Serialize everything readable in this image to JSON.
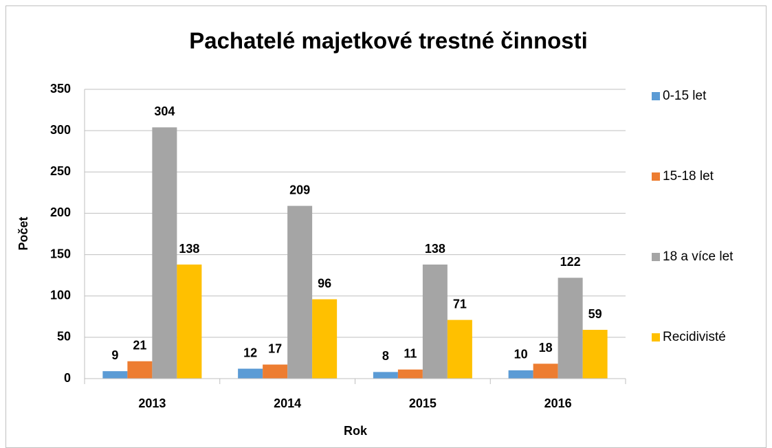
{
  "chart_data": {
    "type": "bar",
    "title": "Pachatelé majetkové trestné činnosti",
    "x_label": "Rok",
    "y_label": "Počet",
    "categories": [
      "2013",
      "2014",
      "2015",
      "2016"
    ],
    "series": [
      {
        "name": "0-15 let",
        "color": "#5b9bd5",
        "values": [
          9,
          12,
          8,
          10
        ]
      },
      {
        "name": "15-18 let",
        "color": "#ed7d31",
        "values": [
          21,
          17,
          11,
          18
        ]
      },
      {
        "name": "18 a více let",
        "color": "#a5a5a5",
        "values": [
          304,
          209,
          138,
          122
        ]
      },
      {
        "name": "Recidivisté",
        "color": "#ffc000",
        "values": [
          138,
          96,
          71,
          59
        ]
      }
    ],
    "ylim": [
      0,
      350
    ],
    "yticks": [
      0,
      50,
      100,
      150,
      200,
      250,
      300,
      350
    ],
    "grid": true,
    "legend": "right"
  }
}
